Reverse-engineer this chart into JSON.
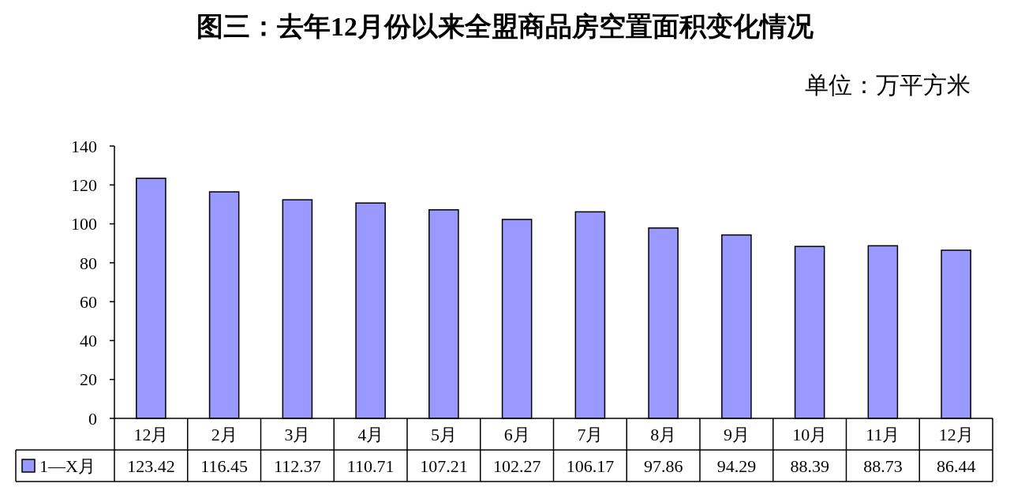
{
  "chart_data": {
    "type": "bar",
    "title": "图三：去年12月份以来全盟商品房空置面积变化情况",
    "annotations": [
      "单位：万平方米"
    ],
    "categories": [
      "12月",
      "2月",
      "3月",
      "4月",
      "5月",
      "6月",
      "7月",
      "8月",
      "9月",
      "10月",
      "11月",
      "12月"
    ],
    "series": [
      {
        "name": "1—X月",
        "color": "#9999ff",
        "values": [
          123.42,
          116.45,
          112.37,
          110.71,
          107.21,
          102.27,
          106.17,
          97.86,
          94.29,
          88.39,
          88.73,
          86.44
        ]
      }
    ],
    "ylim": [
      0,
      140
    ],
    "yticks": [
      0,
      20,
      40,
      60,
      80,
      100,
      120,
      140
    ],
    "grid": false,
    "legend": "bottom left",
    "data_labels": true
  }
}
